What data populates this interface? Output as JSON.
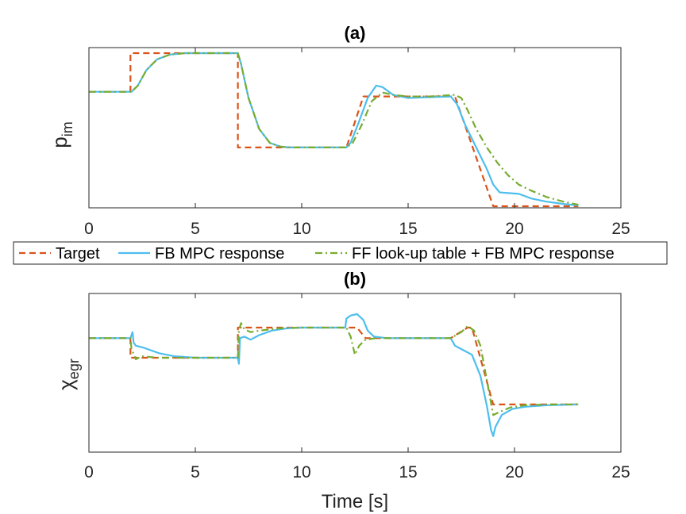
{
  "chart_data": [
    {
      "type": "line",
      "title": "(a)",
      "xlabel": "",
      "ylabel": "p",
      "ylabel_sub": "im",
      "xlim": [
        0,
        25
      ],
      "ylim": [
        0,
        1
      ],
      "xticks": [
        0,
        5,
        10,
        15,
        20,
        25
      ],
      "xtick_labels": [
        "0",
        "5",
        "10",
        "15",
        "20",
        "25"
      ],
      "yticks_shown": false,
      "grid": false,
      "series": [
        {
          "name": "Target",
          "color": "#D95319",
          "style": "dashed",
          "x": [
            0,
            1.95,
            1.95,
            7.0,
            7.0,
            12.1,
            12.9,
            17.2,
            19.0,
            23
          ],
          "y": [
            0.74,
            0.74,
            0.99,
            0.99,
            0.38,
            0.38,
            0.71,
            0.71,
            0.0,
            0.0
          ]
        },
        {
          "name": "FB MPC response",
          "color": "#4DBEEE",
          "style": "solid",
          "x": [
            0,
            2.0,
            2.3,
            2.7,
            3.2,
            3.8,
            4.5,
            7.0,
            7.15,
            7.5,
            8.0,
            8.5,
            9.0,
            9.5,
            10.0,
            12.1,
            12.3,
            12.7,
            13.1,
            13.5,
            13.8,
            14.3,
            15.0,
            16.0,
            17.0,
            17.3,
            17.7,
            18.2,
            18.7,
            19.0,
            19.3,
            19.7,
            20.2,
            20.8,
            21.5,
            22.3,
            23.0
          ],
          "y": [
            0.74,
            0.74,
            0.78,
            0.88,
            0.95,
            0.98,
            0.99,
            0.99,
            0.92,
            0.7,
            0.5,
            0.41,
            0.385,
            0.38,
            0.38,
            0.38,
            0.41,
            0.55,
            0.7,
            0.78,
            0.77,
            0.72,
            0.7,
            0.705,
            0.71,
            0.66,
            0.52,
            0.38,
            0.24,
            0.14,
            0.09,
            0.085,
            0.08,
            0.05,
            0.03,
            0.015,
            0.005
          ]
        },
        {
          "name": "FF look-up table + FB MPC response",
          "color": "#77AC30",
          "style": "dashdot",
          "x": [
            0,
            2.0,
            2.3,
            2.7,
            3.2,
            3.8,
            4.5,
            7.0,
            7.15,
            7.5,
            8.0,
            8.5,
            9.0,
            9.5,
            10.0,
            12.1,
            12.4,
            12.8,
            13.3,
            13.8,
            14.3,
            15.0,
            16.0,
            17.2,
            17.5,
            17.8,
            18.2,
            18.7,
            19.2,
            19.7,
            20.2,
            20.8,
            21.5,
            22.3,
            23.0
          ],
          "y": [
            0.74,
            0.74,
            0.78,
            0.88,
            0.95,
            0.98,
            0.99,
            0.99,
            0.92,
            0.7,
            0.5,
            0.41,
            0.385,
            0.38,
            0.38,
            0.38,
            0.41,
            0.52,
            0.68,
            0.735,
            0.72,
            0.71,
            0.71,
            0.72,
            0.7,
            0.62,
            0.5,
            0.38,
            0.28,
            0.2,
            0.14,
            0.1,
            0.06,
            0.03,
            0.01
          ]
        }
      ]
    },
    {
      "type": "line",
      "title": "(b)",
      "xlabel": "Time [s]",
      "ylabel": "χ",
      "ylabel_sub": "egr",
      "xlim": [
        0,
        25
      ],
      "ylim": [
        0,
        1
      ],
      "xticks": [
        0,
        5,
        10,
        15,
        20,
        25
      ],
      "xtick_labels": [
        "0",
        "5",
        "10",
        "15",
        "20",
        "25"
      ],
      "yticks_shown": false,
      "grid": false,
      "series": [
        {
          "name": "Target",
          "color": "#D95319",
          "style": "dashed",
          "x": [
            0,
            1.95,
            1.95,
            7.0,
            7.0,
            12.05,
            12.6,
            13.0,
            17.0,
            17.8,
            18.0,
            19.0,
            23
          ],
          "y": [
            0.73,
            0.73,
            0.6,
            0.6,
            0.8,
            0.8,
            0.8,
            0.73,
            0.73,
            0.8,
            0.8,
            0.29,
            0.29
          ]
        },
        {
          "name": "FB MPC response",
          "color": "#4DBEEE",
          "style": "solid",
          "x": [
            0,
            1.95,
            2.05,
            2.1,
            2.2,
            2.6,
            3.3,
            4.0,
            5.0,
            7.0,
            7.05,
            7.1,
            7.3,
            7.6,
            8.0,
            8.6,
            9.3,
            10.0,
            12.05,
            12.1,
            12.3,
            12.6,
            12.9,
            13.1,
            13.4,
            14.0,
            15.0,
            17.0,
            17.2,
            17.6,
            18.0,
            18.4,
            18.7,
            18.9,
            19.0,
            19.1,
            19.4,
            19.9,
            20.5,
            21.5,
            23.0
          ],
          "y": [
            0.73,
            0.73,
            0.77,
            0.7,
            0.68,
            0.665,
            0.63,
            0.61,
            0.6,
            0.6,
            0.56,
            0.73,
            0.74,
            0.72,
            0.75,
            0.78,
            0.795,
            0.8,
            0.8,
            0.86,
            0.88,
            0.89,
            0.85,
            0.78,
            0.74,
            0.73,
            0.73,
            0.73,
            0.68,
            0.65,
            0.62,
            0.48,
            0.28,
            0.12,
            0.08,
            0.14,
            0.22,
            0.26,
            0.275,
            0.285,
            0.29
          ]
        },
        {
          "name": "FF look-up table + FB MPC response",
          "color": "#77AC30",
          "style": "dashdot",
          "x": [
            0,
            1.95,
            2.0,
            2.2,
            2.5,
            3.2,
            4.0,
            7.0,
            7.05,
            7.15,
            7.3,
            7.6,
            8.0,
            9.0,
            10.0,
            12.1,
            12.3,
            12.5,
            12.7,
            13.0,
            13.5,
            15.0,
            17.0,
            17.5,
            17.8,
            18.1,
            18.4,
            18.7,
            19.0,
            19.3,
            19.8,
            20.5,
            21.5,
            23.0
          ],
          "y": [
            0.73,
            0.73,
            0.66,
            0.59,
            0.61,
            0.6,
            0.6,
            0.6,
            0.78,
            0.83,
            0.79,
            0.77,
            0.78,
            0.795,
            0.8,
            0.8,
            0.74,
            0.62,
            0.68,
            0.72,
            0.73,
            0.73,
            0.73,
            0.77,
            0.81,
            0.78,
            0.68,
            0.45,
            0.22,
            0.24,
            0.27,
            0.285,
            0.29,
            0.29
          ]
        }
      ]
    }
  ],
  "legend": {
    "placement": "between-panels",
    "items": [
      "Target",
      "FB MPC response",
      "FF look-up table + FB MPC response"
    ],
    "colors": [
      "#D95319",
      "#4DBEEE",
      "#77AC30"
    ],
    "styles": [
      "dashed",
      "solid",
      "dashdot"
    ]
  }
}
